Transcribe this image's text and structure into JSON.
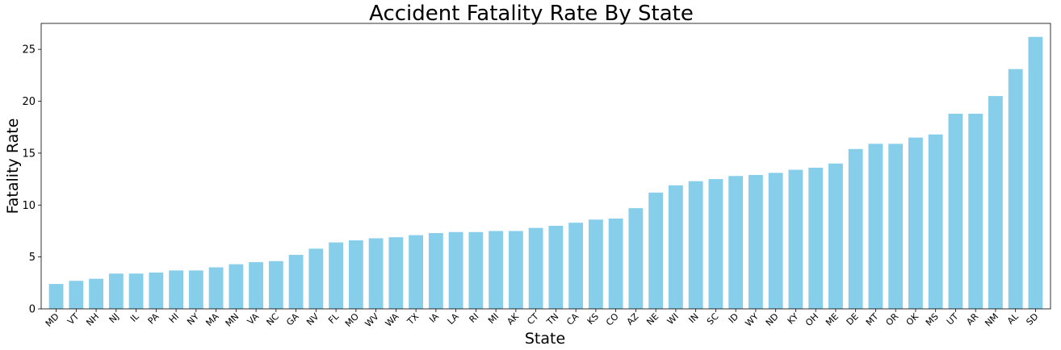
{
  "chart_data": {
    "type": "bar",
    "title": "Accident Fatality Rate By State",
    "xlabel": "State",
    "ylabel": "Fatality Rate",
    "ylim": [
      0,
      27.5
    ],
    "yticks": [
      0,
      5,
      10,
      15,
      20,
      25
    ],
    "grid": false,
    "bar_color": "#87CEEB",
    "categories": [
      "MD",
      "VT",
      "NH",
      "NJ",
      "IL",
      "PA",
      "HI",
      "NY",
      "MA",
      "MN",
      "VA",
      "NC",
      "GA",
      "NV",
      "FL",
      "MO",
      "WV",
      "WA",
      "TX",
      "IA",
      "LA",
      "RI",
      "MI",
      "AK",
      "CT",
      "TN",
      "CA",
      "KS",
      "CO",
      "AZ",
      "NE",
      "WI",
      "IN",
      "SC",
      "ID",
      "WY",
      "ND",
      "KY",
      "OH",
      "ME",
      "DE",
      "MT",
      "OR",
      "OK",
      "MS",
      "UT",
      "AR",
      "NM",
      "AL",
      "SD"
    ],
    "values": [
      2.4,
      2.7,
      2.9,
      3.4,
      3.4,
      3.5,
      3.7,
      3.7,
      4.0,
      4.3,
      4.5,
      4.6,
      5.2,
      5.8,
      6.4,
      6.6,
      6.8,
      6.9,
      7.1,
      7.3,
      7.4,
      7.4,
      7.5,
      7.5,
      7.8,
      8.0,
      8.3,
      8.6,
      8.7,
      9.7,
      11.2,
      11.9,
      12.3,
      12.5,
      12.8,
      12.9,
      13.1,
      13.4,
      13.6,
      14.0,
      15.4,
      15.9,
      15.9,
      16.5,
      16.8,
      18.8,
      18.8,
      20.5,
      23.1,
      26.2
    ]
  }
}
